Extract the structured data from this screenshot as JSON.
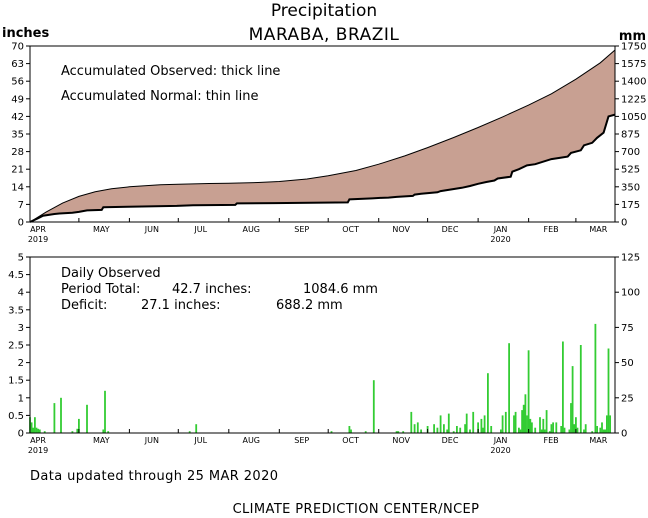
{
  "header": {
    "title": "Precipitation",
    "location": "MARABA, BRAZIL",
    "left_unit": "inches",
    "right_unit": "mm"
  },
  "footer": {
    "updated": "Data updated through 25 MAR 2020",
    "source": "CLIMATE PREDICTION CENTER/NCEP"
  },
  "colors": {
    "deficit_fill": "#c8a092",
    "daily_bar": "#33cc33",
    "lines": "#000000"
  },
  "chart_data": [
    {
      "type": "area",
      "name": "accumulated",
      "note_observed": "Accumulated Observed: thick line",
      "note_normal": "Accumulated Normal: thin line",
      "x_unit": "days since 1 APR 2019",
      "xlim": [
        0,
        359
      ],
      "ylim": [
        0,
        70
      ],
      "y2lim": [
        0,
        1750
      ],
      "y_ticks": [
        "0",
        "7",
        "14",
        "21",
        "28",
        "35",
        "42",
        "49",
        "56",
        "63",
        "70"
      ],
      "y2_ticks": [
        "0",
        "175",
        "350",
        "525",
        "700",
        "875",
        "1050",
        "1225",
        "1400",
        "1575",
        "1750"
      ],
      "x_month_labels": [
        "APR",
        "MAY",
        "JUN",
        "JUL",
        "AUG",
        "SEP",
        "OCT",
        "NOV",
        "DEC",
        "JAN",
        "FEB",
        "MAR"
      ],
      "x_month_days": [
        0,
        30,
        61,
        91,
        122,
        153,
        183,
        214,
        244,
        275,
        306,
        335
      ],
      "x_year_labels": [
        {
          "label": "2019",
          "day": 0
        },
        {
          "label": "2020",
          "day": 275
        }
      ],
      "series": [
        {
          "name": "Accumulated Normal",
          "x": [
            0,
            10,
            20,
            30,
            40,
            50,
            61,
            80,
            91,
            110,
            122,
            140,
            153,
            170,
            183,
            200,
            214,
            230,
            244,
            260,
            275,
            290,
            306,
            320,
            335,
            350,
            359
          ],
          "y": [
            0,
            4,
            7.5,
            10.2,
            12,
            13.2,
            14,
            14.8,
            15,
            15.3,
            15.4,
            15.7,
            16.1,
            17.1,
            18.4,
            20.5,
            23,
            26.3,
            29.6,
            33.6,
            37.6,
            41.8,
            46.5,
            51,
            56.8,
            63.3,
            68.4
          ]
        },
        {
          "name": "Accumulated Observed",
          "x": [
            0,
            5,
            8,
            15,
            18,
            26,
            30,
            35,
            44,
            45,
            60,
            90,
            100,
            126,
            127,
            150,
            180,
            195,
            196,
            210,
            215,
            220,
            225,
            235,
            236,
            240,
            250,
            252,
            265,
            270,
            275,
            280,
            285,
            287,
            295,
            296,
            300,
            305,
            310,
            320,
            325,
            330,
            332,
            338,
            340,
            345,
            348,
            352,
            355,
            359
          ],
          "y": [
            0,
            1.5,
            2.5,
            3.2,
            3.4,
            3.7,
            4,
            4.6,
            4.8,
            5.9,
            6.1,
            6.4,
            6.7,
            6.8,
            7.4,
            7.5,
            7.7,
            7.8,
            9,
            9.4,
            9.6,
            9.7,
            10,
            10.4,
            10.9,
            11.2,
            11.8,
            12.3,
            13.6,
            14.3,
            15.2,
            15.9,
            16.5,
            17.3,
            18,
            20,
            21,
            22.5,
            23,
            25,
            25.5,
            26,
            27.5,
            28.5,
            30.5,
            31.5,
            33.5,
            35.5,
            42,
            42.7
          ]
        }
      ]
    },
    {
      "type": "bar",
      "name": "daily",
      "label": "Daily Observed",
      "period_total_label": "Period Total:",
      "period_total_in": "42.7 inches:",
      "period_total_mm": "1084.6 mm",
      "deficit_label": "Deficit:",
      "deficit_in": "27.1 inches:",
      "deficit_mm": "688.2 mm",
      "xlim": [
        0,
        359
      ],
      "ylim": [
        0,
        5
      ],
      "y2lim": [
        0,
        125
      ],
      "y_ticks": [
        "0",
        "0.5",
        "1",
        "1.5",
        "2",
        "2.5",
        "3",
        "3.5",
        "4",
        "4.5",
        "5"
      ],
      "y2_ticks": [
        "0",
        "25",
        "50",
        "75",
        "100",
        "125"
      ],
      "x": [
        0,
        1,
        2,
        3,
        4,
        5,
        6,
        9,
        15,
        19,
        26,
        29,
        30,
        35,
        45,
        46,
        48,
        98,
        102,
        185,
        196,
        197,
        206,
        211,
        225,
        226,
        229,
        234,
        236,
        238,
        240,
        244,
        248,
        250,
        252,
        254,
        256,
        257,
        260,
        262,
        264,
        267,
        268,
        270,
        272,
        275,
        277,
        278,
        279,
        281,
        283,
        289,
        290,
        292,
        294,
        297,
        298,
        300,
        301,
        302,
        303,
        304,
        305,
        306,
        307,
        308,
        310,
        313,
        314,
        315,
        316,
        317,
        319,
        320,
        321,
        323,
        326,
        327,
        328,
        331,
        332,
        333,
        334,
        335,
        336,
        338,
        340,
        341,
        345,
        347,
        348,
        350,
        351,
        352,
        353,
        354,
        355,
        356
      ],
      "values": [
        0.45,
        0.3,
        0.15,
        0.45,
        0.15,
        0.12,
        0.1,
        0.05,
        0.85,
        1.0,
        0.05,
        0.12,
        0.4,
        0.8,
        0.1,
        1.2,
        0.05,
        0.05,
        0.25,
        0.05,
        0.2,
        0.1,
        0.05,
        1.5,
        0.05,
        0.05,
        0.05,
        0.6,
        0.25,
        0.3,
        0.1,
        0.2,
        0.25,
        0.15,
        0.5,
        0.25,
        0.1,
        0.55,
        0.05,
        0.2,
        0.15,
        0.25,
        0.55,
        0.1,
        0.6,
        0.3,
        0.4,
        0.15,
        0.5,
        1.7,
        0.2,
        0.1,
        0.5,
        0.6,
        2.55,
        0.5,
        0.6,
        0.15,
        0.1,
        0.65,
        0.8,
        1.1,
        0.5,
        2.35,
        0.4,
        0.3,
        0.15,
        0.45,
        0.1,
        0.4,
        0.1,
        0.65,
        0.05,
        0.25,
        0.3,
        0.3,
        0.2,
        2.6,
        0.15,
        0.1,
        0.85,
        1.9,
        0.25,
        0.45,
        0.15,
        2.5,
        0.1,
        0.25,
        0.05,
        3.1,
        0.2,
        0.15,
        0.3,
        0.1,
        0.1,
        0.5,
        2.4,
        0.5
      ]
    }
  ]
}
